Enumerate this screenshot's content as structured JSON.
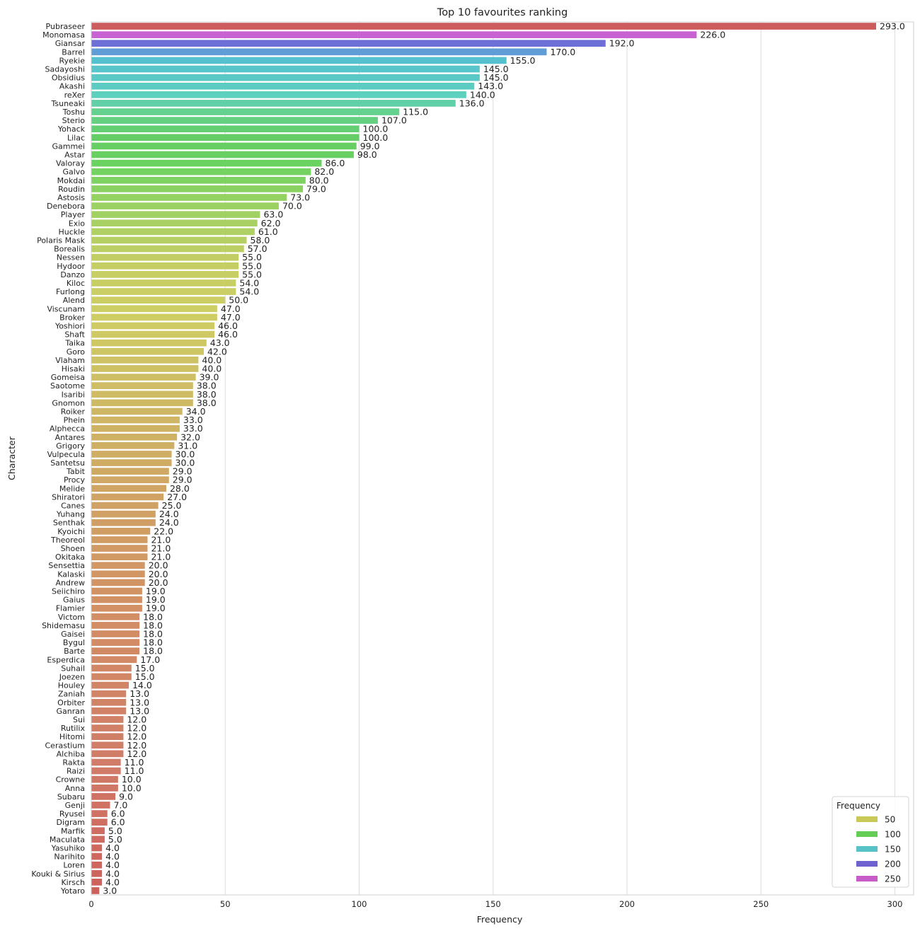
{
  "chart_data": {
    "type": "bar",
    "orientation": "horizontal",
    "title": "Top 10 favourites ranking",
    "xlabel": "Frequency",
    "ylabel": "Character",
    "xlim": [
      0,
      307
    ],
    "xticks": [
      0,
      50,
      100,
      150,
      200,
      250,
      300
    ],
    "grid": "vertical",
    "legend": {
      "title": "Frequency",
      "placement": "bottom-right",
      "entries": [
        {
          "label": "50",
          "color": "#c8c956"
        },
        {
          "label": "100",
          "color": "#64cd55"
        },
        {
          "label": "150",
          "color": "#57c2c7"
        },
        {
          "label": "200",
          "color": "#6d62cf"
        },
        {
          "label": "250",
          "color": "#c75cc9"
        }
      ]
    },
    "categories": [
      "Pubraseer",
      "Monomasa",
      "Giansar",
      "Barrel",
      "Ryekie",
      "Sadayoshi",
      "Obsidius",
      "Akashi",
      "reXer",
      "Tsuneaki",
      "Toshu",
      "Sterio",
      "Yohack",
      "Lilac",
      "Gammei",
      "Astar",
      "Valoray",
      "Galvo",
      "Mokdai",
      "Roudin",
      "Astosis",
      "Denebora",
      "Player",
      "Exio",
      "Huckle",
      "Polaris Mask",
      "Borealis",
      "Nessen",
      "Hydoor",
      "Danzo",
      "Kiloc",
      "Furlong",
      "Alend",
      "Viscunam",
      "Broker",
      "Yoshiori",
      "Shaft",
      "Taika",
      "Goro",
      "Vlaham",
      "Hisaki",
      "Gomeisa",
      "Saotome",
      "Isaribi",
      "Gnomon",
      "Roiker",
      "Phein",
      "Alphecca",
      "Antares",
      "Grigory",
      "Vulpecula",
      "Santetsu",
      "Tabit",
      "Procy",
      "Melide",
      "Shiratori",
      "Canes",
      "Yuhang",
      "Senthak",
      "Kyoichi",
      "Theoreol",
      "Shoen",
      "Okitaka",
      "Sensettia",
      "Kalaski",
      "Andrew",
      "Seiichiro",
      "Gaius",
      "Flamier",
      "Victom",
      "Shidemasu",
      "Gaisei",
      "Bygul",
      "Barte",
      "Esperdica",
      "Suhail",
      "Joezen",
      "Houley",
      "Zaniah",
      "Orbiter",
      "Ganran",
      "Sui",
      "Rutilix",
      "Hitomi",
      "Cerastium",
      "Alchiba",
      "Rakta",
      "Raizi",
      "Crowne",
      "Anna",
      "Subaru",
      "Genji",
      "Ryusei",
      "Digram",
      "Marfik",
      "Maculata",
      "Yasuhiko",
      "Narihito",
      "Loren",
      "Kouki & Sirius",
      "Kirsch",
      "Yotaro"
    ],
    "values": [
      293,
      226,
      192,
      170,
      155,
      145,
      145,
      143,
      140,
      136,
      115,
      107,
      100,
      100,
      99,
      98,
      86,
      82,
      80,
      79,
      73,
      70,
      63,
      62,
      61,
      58,
      57,
      55,
      55,
      55,
      54,
      54,
      50,
      47,
      47,
      46,
      46,
      43,
      42,
      40,
      40,
      39,
      38,
      38,
      38,
      34,
      33,
      33,
      32,
      31,
      30,
      30,
      29,
      29,
      28,
      27,
      25,
      24,
      24,
      22,
      21,
      21,
      21,
      20,
      20,
      20,
      19,
      19,
      19,
      18,
      18,
      18,
      18,
      18,
      17,
      15,
      15,
      14,
      13,
      13,
      13,
      12,
      12,
      12,
      12,
      12,
      11,
      11,
      10,
      10,
      9,
      7,
      6,
      6,
      5,
      5,
      4,
      4,
      4,
      4,
      4,
      3
    ],
    "value_labels": [
      "293.0",
      "226.0",
      "192.0",
      "170.0",
      "155.0",
      "145.0",
      "145.0",
      "143.0",
      "140.0",
      "136.0",
      "115.0",
      "107.0",
      "100.0",
      "100.0",
      "99.0",
      "98.0",
      "86.0",
      "82.0",
      "80.0",
      "79.0",
      "73.0",
      "70.0",
      "63.0",
      "62.0",
      "61.0",
      "58.0",
      "57.0",
      "55.0",
      "55.0",
      "55.0",
      "54.0",
      "54.0",
      "50.0",
      "47.0",
      "47.0",
      "46.0",
      "46.0",
      "43.0",
      "42.0",
      "40.0",
      "40.0",
      "39.0",
      "38.0",
      "38.0",
      "38.0",
      "34.0",
      "33.0",
      "33.0",
      "32.0",
      "31.0",
      "30.0",
      "30.0",
      "29.0",
      "29.0",
      "28.0",
      "27.0",
      "25.0",
      "24.0",
      "24.0",
      "22.0",
      "21.0",
      "21.0",
      "21.0",
      "20.0",
      "20.0",
      "20.0",
      "19.0",
      "19.0",
      "19.0",
      "18.0",
      "18.0",
      "18.0",
      "18.0",
      "18.0",
      "17.0",
      "15.0",
      "15.0",
      "14.0",
      "13.0",
      "13.0",
      "13.0",
      "12.0",
      "12.0",
      "12.0",
      "12.0",
      "12.0",
      "11.0",
      "11.0",
      "10.0",
      "10.0",
      "9.0",
      "7.0",
      "6.0",
      "6.0",
      "5.0",
      "5.0",
      "4.0",
      "4.0",
      "4.0",
      "4.0",
      "4.0",
      "3.0"
    ],
    "palette": "hls, rank-ordered (red → magenta → blue → cyan → green → yellow-green → gold → salmon)"
  }
}
